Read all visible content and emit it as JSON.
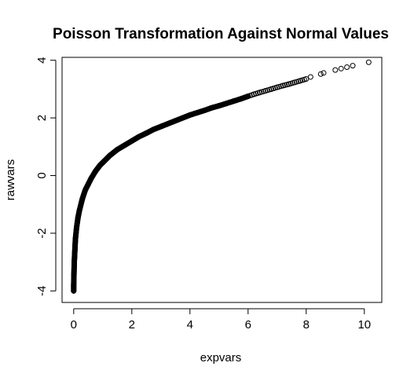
{
  "chart_data": {
    "type": "scatter",
    "title": "Poisson Transformation Against Normal Values",
    "xlabel": "expvars",
    "ylabel": "rawvars",
    "xlim": [
      -0.4,
      10.6
    ],
    "ylim": [
      -4.4,
      4.1
    ],
    "x_ticks": [
      0,
      2,
      4,
      6,
      8,
      10
    ],
    "y_ticks": [
      -4,
      -2,
      0,
      2,
      4
    ],
    "x_tick_labels": [
      "0",
      "2",
      "4",
      "6",
      "8",
      "10"
    ],
    "y_tick_labels": [
      "-4",
      "-2",
      "0",
      "2",
      "4"
    ],
    "grid": false,
    "marker": "open-circle",
    "point_color": "#000000",
    "series": [
      {
        "x": [
          0.0,
          0.0,
          0.01,
          0.02,
          0.04,
          0.06,
          0.1,
          0.15,
          0.2,
          0.3,
          0.4,
          0.5,
          0.6,
          0.75,
          0.9,
          1.0,
          1.25,
          1.5,
          1.75,
          2.0,
          2.25,
          2.5,
          2.75,
          3.0,
          3.25,
          3.5,
          3.75,
          4.0,
          4.25,
          4.5,
          4.75,
          5.0,
          5.25,
          5.5,
          5.75,
          6.0,
          6.2,
          6.4,
          6.6,
          6.8,
          7.0,
          7.2,
          7.4,
          7.6,
          7.8,
          8.0,
          8.15,
          8.5,
          8.6,
          9.0,
          9.2,
          9.4,
          9.6,
          10.15
        ],
        "y": [
          -4.0,
          -3.8,
          -3.4,
          -3.0,
          -2.6,
          -2.2,
          -1.8,
          -1.45,
          -1.2,
          -0.8,
          -0.5,
          -0.3,
          -0.1,
          0.15,
          0.35,
          0.45,
          0.7,
          0.9,
          1.05,
          1.2,
          1.35,
          1.47,
          1.6,
          1.7,
          1.8,
          1.9,
          2.0,
          2.1,
          2.18,
          2.26,
          2.35,
          2.42,
          2.5,
          2.58,
          2.66,
          2.75,
          2.82,
          2.88,
          2.94,
          3.0,
          3.06,
          3.12,
          3.17,
          3.23,
          3.29,
          3.35,
          3.42,
          3.52,
          3.56,
          3.66,
          3.71,
          3.76,
          3.81,
          3.93
        ]
      }
    ]
  }
}
